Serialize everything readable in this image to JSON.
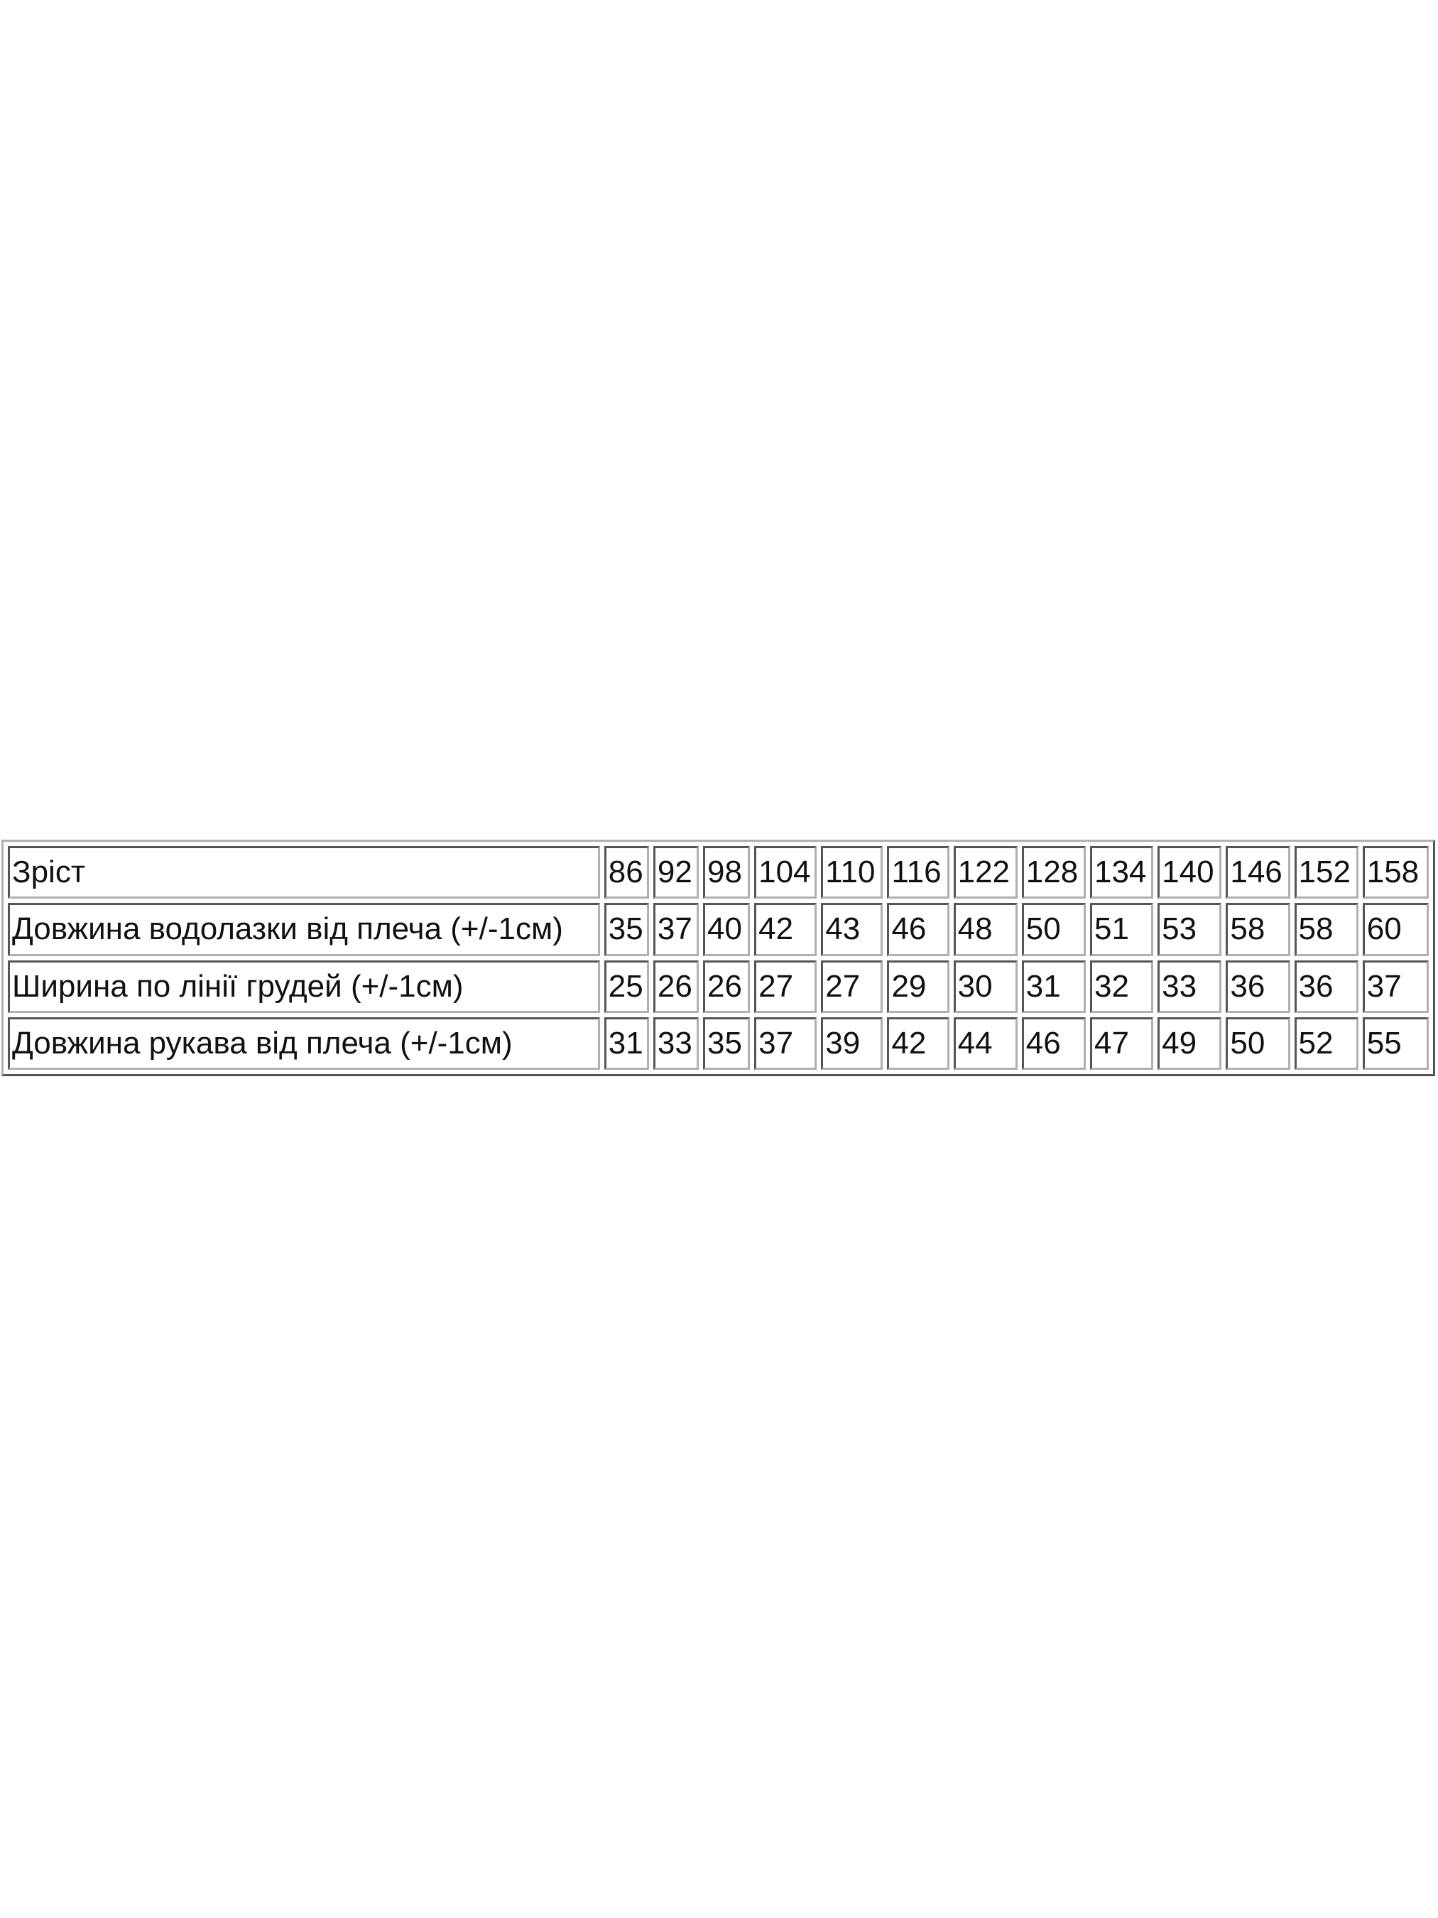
{
  "size_table": {
    "header": {
      "label": "Зріст",
      "values": [
        "86",
        "92",
        "98",
        "104",
        "110",
        "116",
        "122",
        "128",
        "134",
        "140",
        "146",
        "152",
        "158"
      ]
    },
    "rows": [
      {
        "label": "Довжина водолазки від плеча (+/-1см)",
        "values": [
          "35",
          "37",
          "40",
          "42",
          "43",
          "46",
          "48",
          "50",
          "51",
          "53",
          "58",
          "58",
          "60"
        ]
      },
      {
        "label": "Ширина по лінії грудей (+/-1см)",
        "values": [
          "25",
          "26",
          "26",
          "27",
          "27",
          "29",
          "30",
          "31",
          "32",
          "33",
          "36",
          "36",
          "37"
        ]
      },
      {
        "label": "Довжина рукава від плеча (+/-1см)",
        "values": [
          "31",
          "33",
          "35",
          "37",
          "39",
          "42",
          "44",
          "46",
          "47",
          "49",
          "50",
          "52",
          "55"
        ]
      }
    ]
  }
}
